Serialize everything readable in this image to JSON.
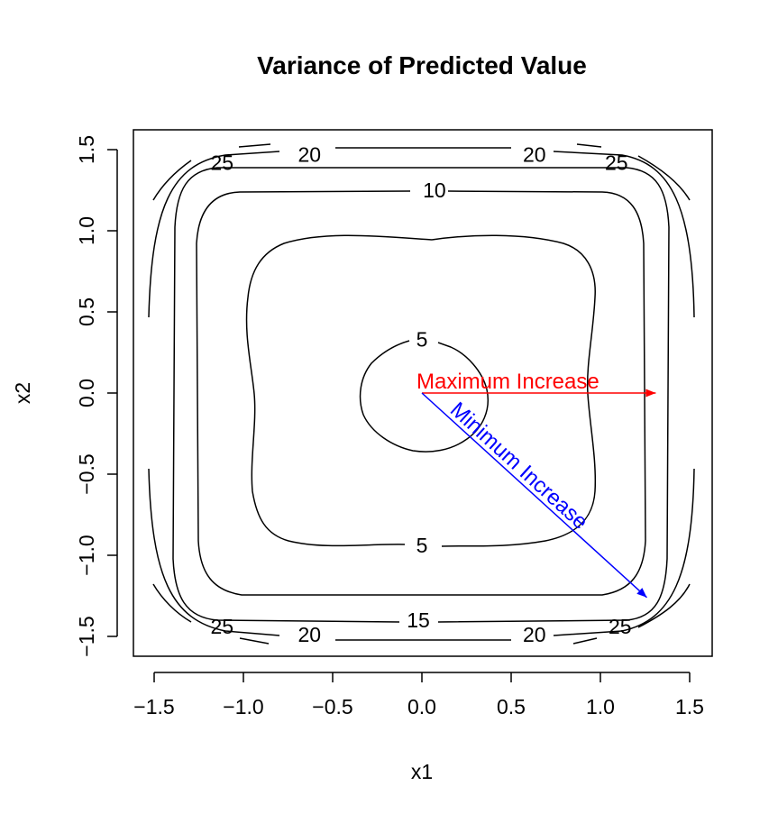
{
  "chart_data": {
    "type": "contour",
    "title": "Variance of Predicted Value",
    "xlabel": "x1",
    "ylabel": "x2",
    "xlim": [
      -1.6,
      1.6
    ],
    "ylim": [
      -1.6,
      1.6
    ],
    "xticks": [
      -1.5,
      -1.0,
      -0.5,
      0.0,
      0.5,
      1.0,
      1.5
    ],
    "xtick_labels": [
      "−1.5",
      "−1.0",
      "−0.5",
      "0.0",
      "0.5",
      "1.0",
      "1.5"
    ],
    "yticks": [
      -1.5,
      -1.0,
      -0.5,
      0.0,
      0.5,
      1.0,
      1.5
    ],
    "ytick_labels": [
      "−1.5",
      "−1.0",
      "−0.5",
      "0.0",
      "0.5",
      "1.0",
      "1.5"
    ],
    "contour_levels": [
      5,
      10,
      15,
      20,
      25
    ],
    "contour_labels": [
      {
        "text": "5",
        "x": 0.0,
        "y": 0.33
      },
      {
        "text": "5",
        "x": 0.0,
        "y": -0.94
      },
      {
        "text": "10",
        "x": 0.07,
        "y": 1.25
      },
      {
        "text": "15",
        "x": -0.02,
        "y": -1.4
      },
      {
        "text": "20",
        "x": -0.63,
        "y": 1.47
      },
      {
        "text": "20",
        "x": 0.63,
        "y": 1.47
      },
      {
        "text": "20",
        "x": -0.63,
        "y": -1.49
      },
      {
        "text": "20",
        "x": 0.63,
        "y": -1.49
      },
      {
        "text": "25",
        "x": -1.12,
        "y": 1.42
      },
      {
        "text": "25",
        "x": 1.09,
        "y": 1.42
      },
      {
        "text": "25",
        "x": -1.12,
        "y": -1.44
      },
      {
        "text": "25",
        "x": 1.11,
        "y": -1.44
      }
    ],
    "arrows": [
      {
        "label": "Maximum Increase",
        "color": "#ff0000",
        "from": [
          0.0,
          0.0
        ],
        "to": [
          1.31,
          0.0
        ]
      },
      {
        "label": "Minimum Increase",
        "color": "#0000ff",
        "from": [
          0.0,
          0.0
        ],
        "to": [
          1.26,
          -1.26
        ]
      }
    ],
    "grid": false,
    "legend": "none"
  }
}
